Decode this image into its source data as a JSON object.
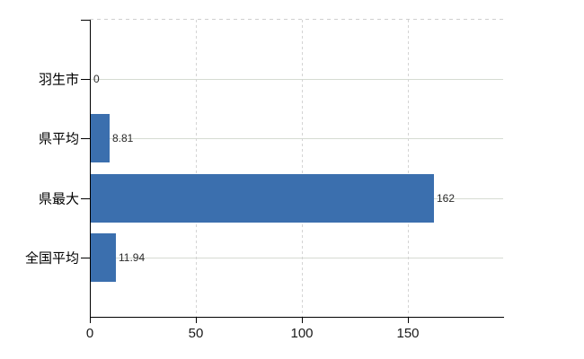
{
  "chart_data": {
    "type": "bar",
    "orientation": "horizontal",
    "title": "",
    "categories": [
      "羽生市",
      "県平均",
      "県最大",
      "全国平均"
    ],
    "values": [
      0,
      8.81,
      162,
      11.94
    ],
    "value_labels": [
      "0",
      "8.81",
      "162",
      "11.94"
    ],
    "x_ticks": [
      0,
      50,
      100,
      150
    ],
    "x_tick_labels": [
      "0",
      "50",
      "100",
      "150"
    ],
    "xlim": [
      0,
      195
    ],
    "ylabel": "",
    "xlabel": "",
    "grid": "on",
    "legend": "none",
    "colors": {
      "bar": "#3b6fae",
      "axis": "#000000",
      "h_gridline": "#d6dbd2",
      "v_gridline": "#d4d4d4",
      "plot_border_dash": "#cfcfcf",
      "background": "#ffffff",
      "category_text": "#000000",
      "tick_text": "#1a1a1a",
      "value_text": "#2b2b2b"
    }
  }
}
